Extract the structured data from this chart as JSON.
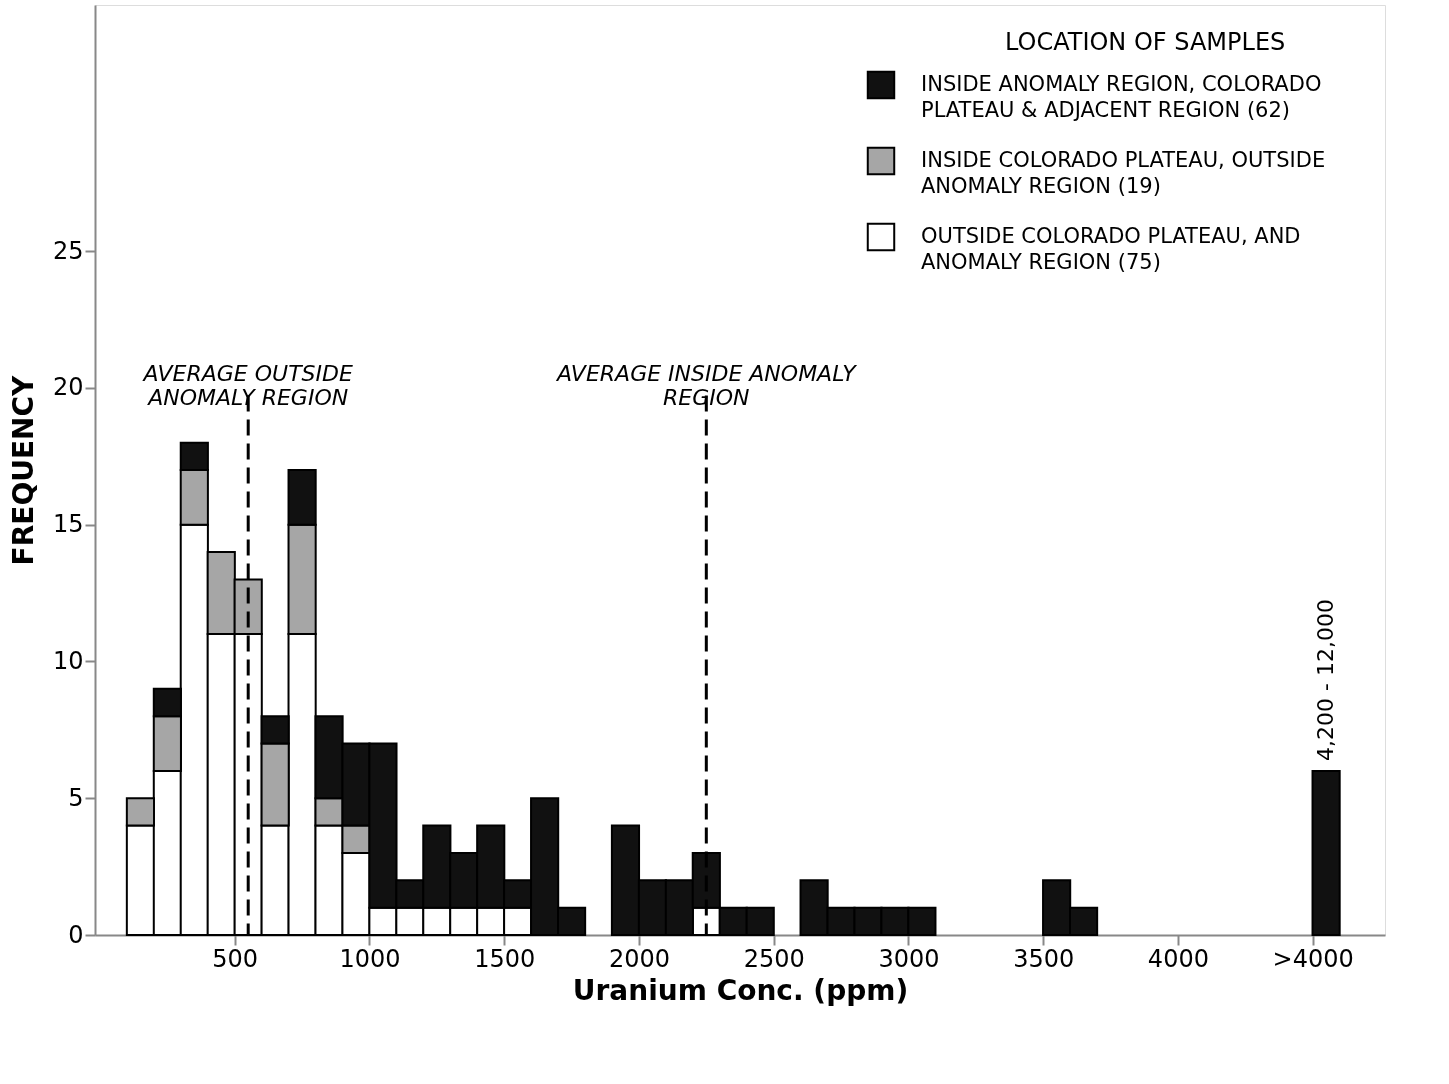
{
  "chart_data": {
    "type": "bar",
    "stacked": true,
    "xlabel": "Uranium Conc. (ppm)",
    "ylabel": "FREQUENCY",
    "legend_title": "LOCATION OF SAMPLES",
    "x": [
      150,
      250,
      350,
      450,
      550,
      650,
      750,
      850,
      950,
      1050,
      1150,
      1250,
      1350,
      1450,
      1550,
      1650,
      1750,
      1950,
      2050,
      2150,
      2250,
      2350,
      2450,
      2650,
      2750,
      2850,
      2950,
      3050,
      3550,
      3650,
      4550
    ],
    "series": [
      {
        "name": "OUTSIDE COLORADO PLATEAU, AND ANOMALY REGION (75)",
        "color": "#ffffff",
        "values": [
          4,
          6,
          15,
          11,
          11,
          4,
          11,
          4,
          3,
          1,
          1,
          1,
          1,
          1,
          1,
          0,
          0,
          0,
          0,
          0,
          1,
          0,
          0,
          0,
          0,
          0,
          0,
          0,
          0,
          0,
          0
        ]
      },
      {
        "name": "INSIDE COLORADO PLATEAU, OUTSIDE ANOMALY REGION (19)",
        "color": "#a6a6a6",
        "values": [
          1,
          2,
          2,
          3,
          2,
          3,
          4,
          1,
          1,
          0,
          0,
          0,
          0,
          0,
          0,
          0,
          0,
          0,
          0,
          0,
          0,
          0,
          0,
          0,
          0,
          0,
          0,
          0,
          0,
          0,
          0
        ]
      },
      {
        "name": "INSIDE ANOMALY REGION, COLORADO PLATEAU & ADJACENT REGION (62)",
        "color": "#111111",
        "values": [
          0,
          1,
          1,
          0,
          0,
          1,
          2,
          3,
          3,
          6,
          1,
          3,
          2,
          3,
          1,
          5,
          1,
          4,
          2,
          2,
          2,
          1,
          1,
          2,
          1,
          1,
          1,
          1,
          2,
          1,
          6
        ]
      }
    ],
    "xlim": [
      0,
      4750
    ],
    "xticks": [
      500,
      1000,
      1500,
      2000,
      2500,
      3000,
      3500,
      4000,
      {
        "value": 4500,
        "label": ">4000"
      }
    ],
    "ylim": [
      0,
      34
    ],
    "yticks": [
      0,
      5,
      10,
      15,
      20,
      25
    ],
    "ref_lines": [
      {
        "axis": "x",
        "value": 550,
        "label": "AVERAGE OUTSIDE ANOMALY REGION",
        "line_style": "dashed"
      },
      {
        "axis": "x",
        "value": 2250,
        "label": "AVERAGE INSIDE ANOMALY REGION",
        "line_style": "dashed"
      }
    ],
    "annotations": [
      {
        "text": "4,200 - 12,000",
        "x": 4550,
        "y": 6
      }
    ],
    "legend": "top right",
    "grid": false
  }
}
